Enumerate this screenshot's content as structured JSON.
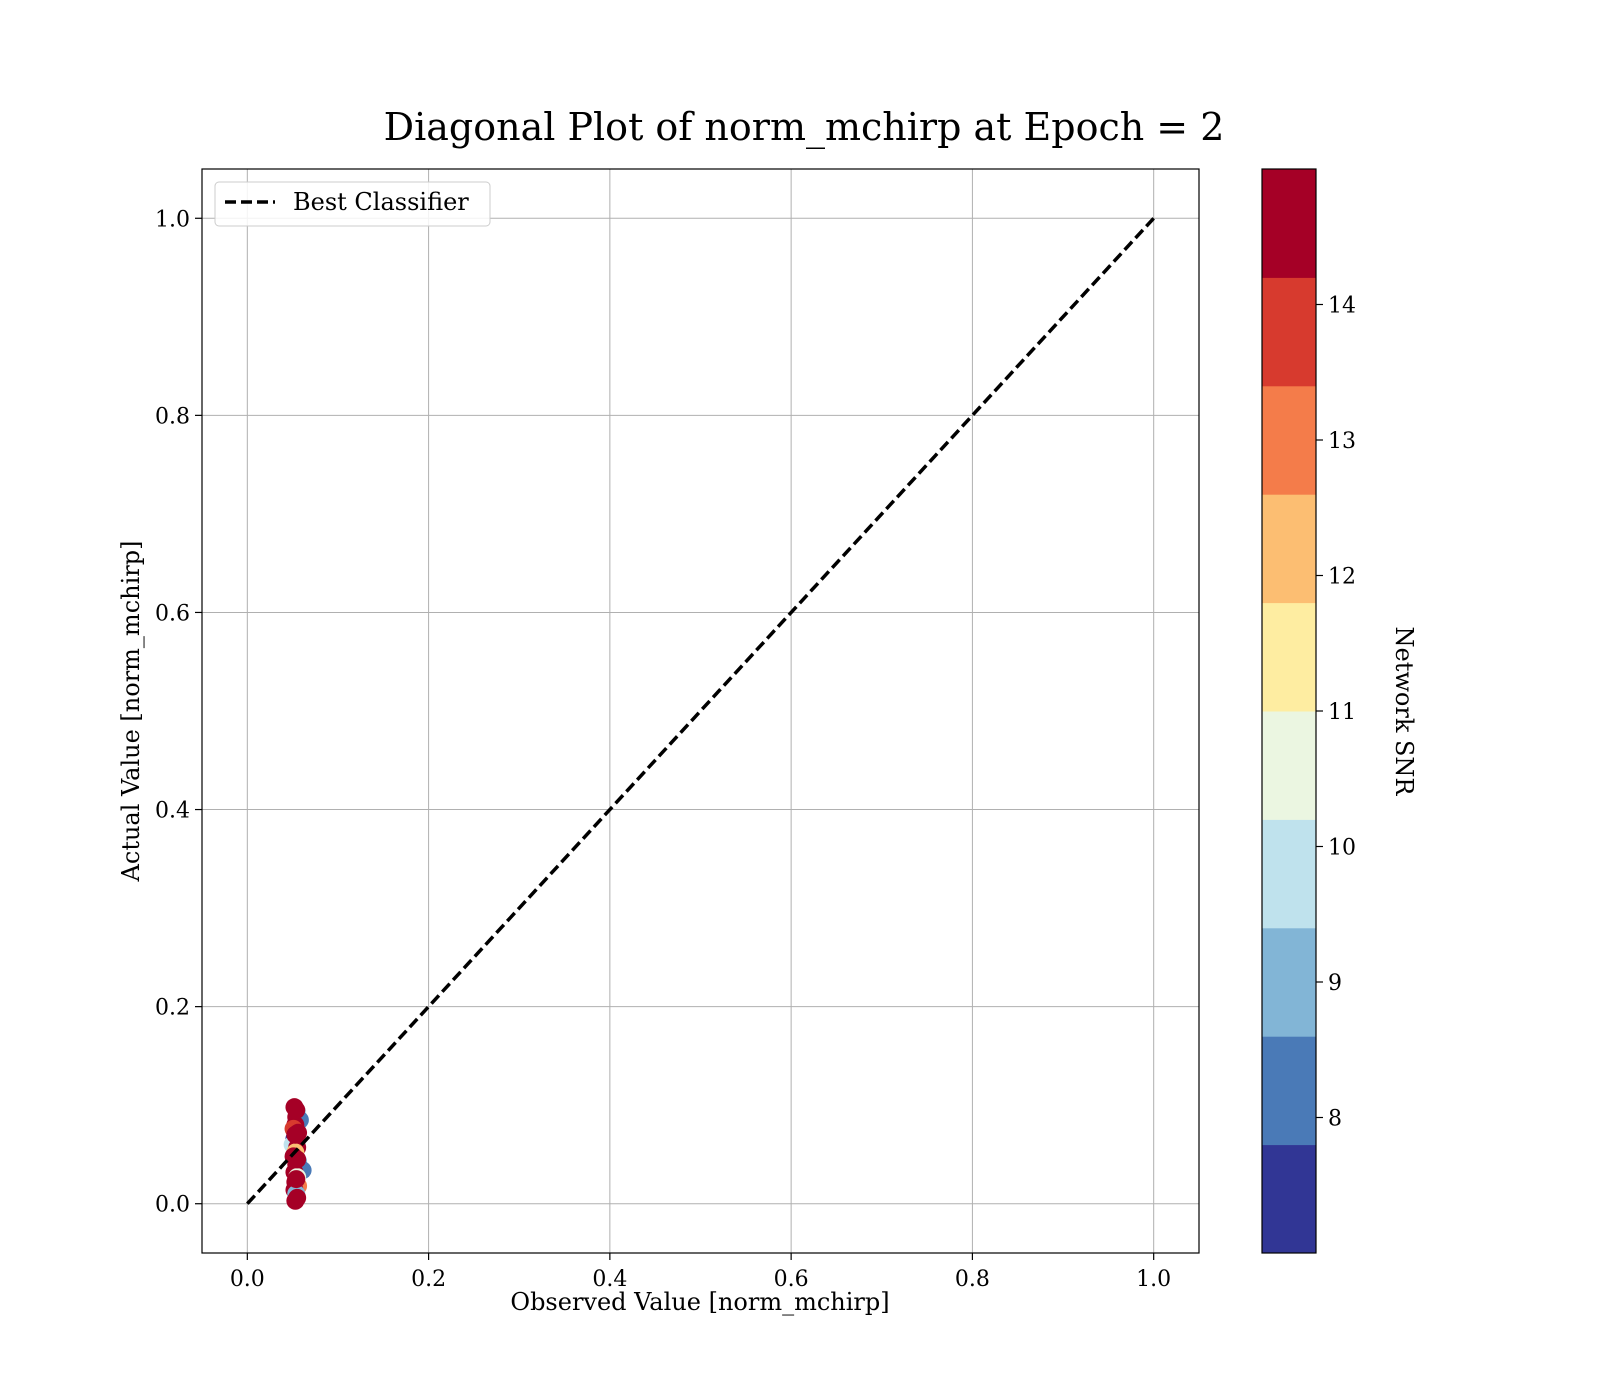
{
  "chart_data": {
    "type": "scatter",
    "title": "Diagonal Plot of norm_mchirp at Epoch = 2",
    "xlabel": "Observed Value [norm_mchirp]",
    "ylabel": "Actual Value [norm_mchirp]",
    "xlim": [
      -0.05,
      1.05
    ],
    "ylim": [
      -0.05,
      1.05
    ],
    "x_ticks": [
      "0.0",
      "0.2",
      "0.4",
      "0.6",
      "0.8",
      "1.0"
    ],
    "y_ticks": [
      "0.0",
      "0.2",
      "0.4",
      "0.6",
      "0.8",
      "1.0"
    ],
    "grid": true,
    "legend": {
      "placement": "top-left",
      "entries": [
        {
          "label": "Best Classifier",
          "style": "dashed",
          "color": "#000000"
        }
      ]
    },
    "reference_line": {
      "name": "Best Classifier",
      "x": [
        0,
        1
      ],
      "y": [
        0,
        1
      ],
      "style": "dashed",
      "color": "#000000"
    },
    "points": [
      {
        "x": 0.052,
        "y": 0.098,
        "snr": 14.6
      },
      {
        "x": 0.055,
        "y": 0.093,
        "snr": 9.4
      },
      {
        "x": 0.054,
        "y": 0.088,
        "snr": 14.8
      },
      {
        "x": 0.058,
        "y": 0.085,
        "snr": 8.2
      },
      {
        "x": 0.053,
        "y": 0.08,
        "snr": 14.5
      },
      {
        "x": 0.051,
        "y": 0.076,
        "snr": 13.9
      },
      {
        "x": 0.056,
        "y": 0.072,
        "snr": 14.7
      },
      {
        "x": 0.052,
        "y": 0.066,
        "snr": 7.5
      },
      {
        "x": 0.054,
        "y": 0.062,
        "snr": 14.9
      },
      {
        "x": 0.05,
        "y": 0.06,
        "snr": 9.8
      },
      {
        "x": 0.055,
        "y": 0.057,
        "snr": 14.4
      },
      {
        "x": 0.053,
        "y": 0.052,
        "snr": 12.5
      },
      {
        "x": 0.051,
        "y": 0.048,
        "snr": 14.6
      },
      {
        "x": 0.056,
        "y": 0.043,
        "snr": 8.7
      },
      {
        "x": 0.054,
        "y": 0.04,
        "snr": 14.8
      },
      {
        "x": 0.061,
        "y": 0.034,
        "snr": 7.9
      },
      {
        "x": 0.052,
        "y": 0.032,
        "snr": 14.3
      },
      {
        "x": 0.055,
        "y": 0.027,
        "snr": 10.6
      },
      {
        "x": 0.053,
        "y": 0.022,
        "snr": 14.7
      },
      {
        "x": 0.056,
        "y": 0.018,
        "snr": 13.2
      },
      {
        "x": 0.052,
        "y": 0.014,
        "snr": 14.9
      },
      {
        "x": 0.054,
        "y": 0.01,
        "snr": 9.2
      },
      {
        "x": 0.055,
        "y": 0.006,
        "snr": 14.5
      },
      {
        "x": 0.053,
        "y": 0.003,
        "snr": 14.2
      },
      {
        "x": 0.054,
        "y": 0.095,
        "snr": 14.6
      },
      {
        "x": 0.053,
        "y": 0.07,
        "snr": 14.7
      },
      {
        "x": 0.055,
        "y": 0.045,
        "snr": 14.5
      },
      {
        "x": 0.054,
        "y": 0.025,
        "snr": 14.8
      }
    ],
    "colorbar": {
      "label": "Network SNR",
      "range": [
        7,
        15
      ],
      "ticks": [
        "8",
        "9",
        "10",
        "11",
        "12",
        "13",
        "14"
      ],
      "colors": [
        "#313695",
        "#4a7ab7",
        "#82b5d6",
        "#bfe2ed",
        "#ebf6e1",
        "#feeda1",
        "#fcbe72",
        "#f47c4a",
        "#d73a2e",
        "#a50026"
      ]
    }
  }
}
